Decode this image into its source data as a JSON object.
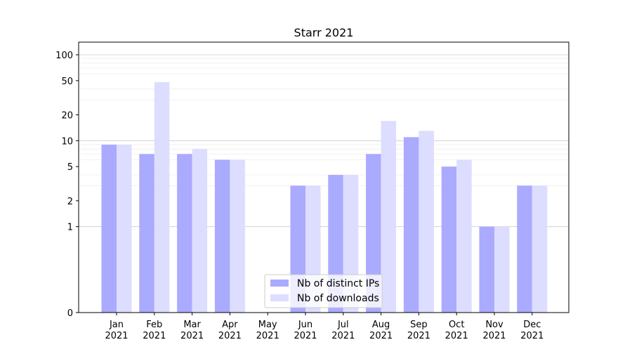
{
  "chart_data": {
    "type": "bar",
    "title": "Starr 2021",
    "xlabel": "",
    "ylabel": "",
    "y_scale": "symlog",
    "ylim": [
      0,
      120
    ],
    "y_ticks": [
      0,
      1,
      2,
      5,
      10,
      20,
      50,
      100
    ],
    "y_tick_labels": [
      "0",
      "1",
      "2",
      "5",
      "10",
      "20",
      "50",
      "100"
    ],
    "grid": true,
    "legend_position": "bottom-center",
    "categories": [
      {
        "month": "Jan",
        "year": "2021"
      },
      {
        "month": "Feb",
        "year": "2021"
      },
      {
        "month": "Mar",
        "year": "2021"
      },
      {
        "month": "Apr",
        "year": "2021"
      },
      {
        "month": "May",
        "year": "2021"
      },
      {
        "month": "Jun",
        "year": "2021"
      },
      {
        "month": "Jul",
        "year": "2021"
      },
      {
        "month": "Aug",
        "year": "2021"
      },
      {
        "month": "Sep",
        "year": "2021"
      },
      {
        "month": "Oct",
        "year": "2021"
      },
      {
        "month": "Nov",
        "year": "2021"
      },
      {
        "month": "Dec",
        "year": "2021"
      }
    ],
    "series": [
      {
        "name": "Nb of distinct IPs",
        "color": "#aaaaff",
        "values": [
          9,
          7,
          7,
          6,
          0,
          3,
          4,
          7,
          11,
          5,
          1,
          3
        ]
      },
      {
        "name": "Nb of downloads",
        "color": "#ddddff",
        "values": [
          9,
          48,
          8,
          6,
          0,
          3,
          4,
          17,
          13,
          6,
          1,
          3
        ]
      }
    ]
  }
}
